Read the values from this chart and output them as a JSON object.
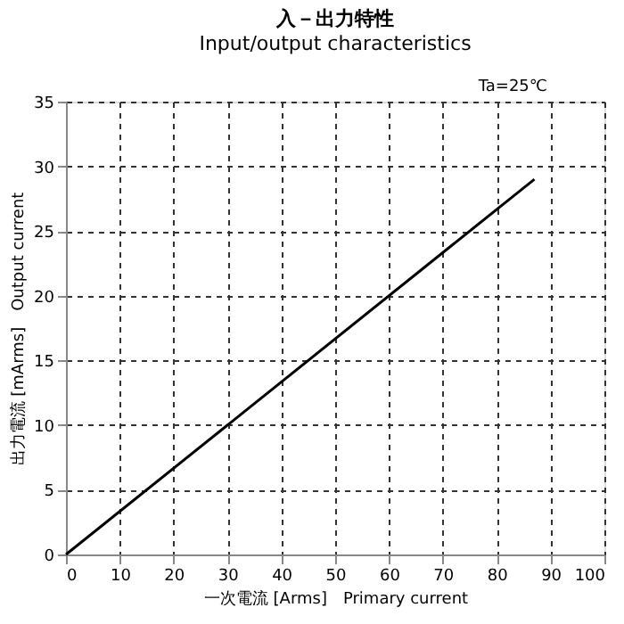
{
  "chart_data": {
    "type": "line",
    "title": "入－出力特性",
    "subtitle": "Input/output characteristics",
    "xlabel": "一次電流 [Arms]　Primary current",
    "ylabel": "出力電流 [mArms]　Output current",
    "annotations": [
      "Ta=25℃"
    ],
    "x": [
      0,
      87
    ],
    "series": [
      {
        "color": "#000000",
        "values": [
          0,
          29
        ]
      }
    ],
    "xlim": [
      0,
      100
    ],
    "xticks": [
      0,
      10,
      20,
      30,
      40,
      50,
      60,
      70,
      80,
      90,
      100
    ],
    "ylim": [
      0,
      35
    ],
    "yticks": [
      0,
      5,
      10,
      15,
      20,
      25,
      30,
      35
    ],
    "grid": true,
    "legend": false,
    "marker": "none",
    "line_style": "solid"
  }
}
